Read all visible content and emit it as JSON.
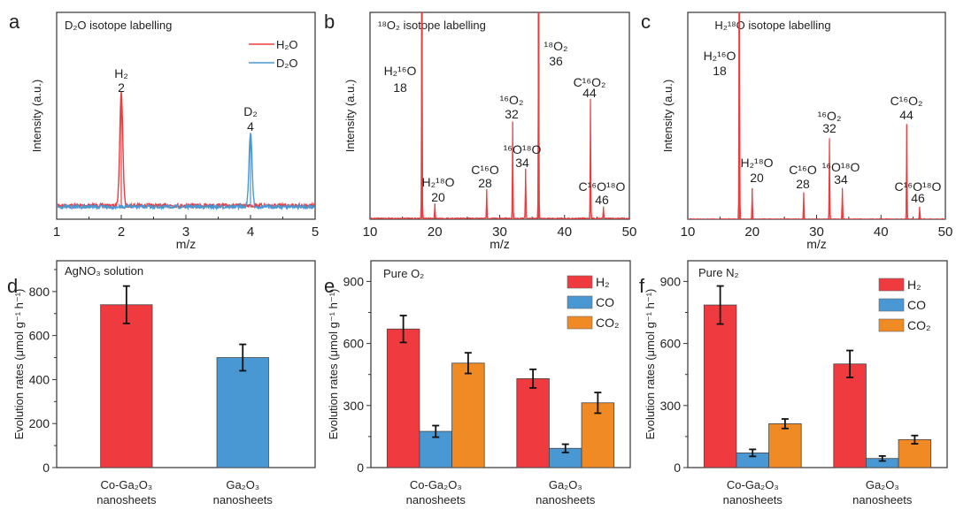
{
  "colors": {
    "red": "#ef3b3f",
    "blue": "#4a98d3",
    "orange": "#f08a24",
    "axis": "#333333"
  },
  "chart_data": [
    {
      "panel": "a",
      "type": "line",
      "title": "D₂O isotope labelling",
      "xlabel": "m/z",
      "ylabel": "Intensity (a.u.)",
      "xlim": [
        1,
        5
      ],
      "xticks": [
        1,
        2,
        3,
        4,
        5
      ],
      "ylim": [
        0,
        1
      ],
      "legend": "top-right",
      "series": [
        {
          "name": "H₂O",
          "color": "#ef3b3f",
          "peaks": [
            {
              "x": 2,
              "y": 0.58
            }
          ]
        },
        {
          "name": "D₂O",
          "color": "#4a98d3",
          "peaks": [
            {
              "x": 4,
              "y": 0.38
            }
          ]
        }
      ],
      "annotations": [
        {
          "name": "H₂",
          "mz": "2"
        },
        {
          "name": "D₂",
          "mz": "4"
        }
      ]
    },
    {
      "panel": "b",
      "type": "line",
      "title": "¹⁸O₂ isotope labelling",
      "xlabel": "m/z",
      "ylabel": "Intensity (a.u.)",
      "xlim": [
        10,
        50
      ],
      "xticks": [
        10,
        20,
        30,
        40,
        50
      ],
      "ylim": [
        0,
        1
      ],
      "series": [
        {
          "color": "#ef3b3f",
          "peaks": [
            {
              "x": 18,
              "y": 1.2
            },
            {
              "x": 20,
              "y": 0.07
            },
            {
              "x": 28,
              "y": 0.14
            },
            {
              "x": 32,
              "y": 0.47
            },
            {
              "x": 34,
              "y": 0.24
            },
            {
              "x": 36,
              "y": 1.2
            },
            {
              "x": 44,
              "y": 0.58
            },
            {
              "x": 46,
              "y": 0.055
            }
          ]
        }
      ],
      "annotations": [
        {
          "name": "H₂¹⁶O",
          "mz": "18"
        },
        {
          "name": "H₂¹⁸O",
          "mz": "20"
        },
        {
          "name": "C¹⁶O",
          "mz": "28"
        },
        {
          "name": "¹⁶O₂",
          "mz": "32"
        },
        {
          "name": "¹⁶O¹⁸O",
          "mz": "34"
        },
        {
          "name": "¹⁸O₂",
          "mz": "36"
        },
        {
          "name": "C¹⁶O₂",
          "mz": "44"
        },
        {
          "name": "C¹⁶O¹⁸O",
          "mz": "46"
        }
      ]
    },
    {
      "panel": "c",
      "type": "line",
      "title": "H₂¹⁸O isotope labelling",
      "xlabel": "m/z",
      "ylabel": "Intensity (a.u.)",
      "xlim": [
        10,
        50
      ],
      "xticks": [
        10,
        20,
        30,
        40,
        50
      ],
      "ylim": [
        0,
        1
      ],
      "series": [
        {
          "color": "#ef3b3f",
          "peaks": [
            {
              "x": 18,
              "y": 1.2
            },
            {
              "x": 20,
              "y": 0.15
            },
            {
              "x": 28,
              "y": 0.13
            },
            {
              "x": 32,
              "y": 0.39
            },
            {
              "x": 34,
              "y": 0.15
            },
            {
              "x": 44,
              "y": 0.46
            },
            {
              "x": 46,
              "y": 0.06
            }
          ]
        }
      ],
      "annotations": [
        {
          "name": "H₂¹⁶O",
          "mz": "18"
        },
        {
          "name": "H₂¹⁸O",
          "mz": "20"
        },
        {
          "name": "C¹⁶O",
          "mz": "28"
        },
        {
          "name": "¹⁶O₂",
          "mz": "32"
        },
        {
          "name": "¹⁶O¹⁸O",
          "mz": "34"
        },
        {
          "name": "C¹⁶O₂",
          "mz": "44"
        },
        {
          "name": "C¹⁶O¹⁸O",
          "mz": "46"
        }
      ]
    },
    {
      "panel": "d",
      "type": "bar",
      "title": "AgNO₃ solution",
      "ylabel": "Evolution rates (μmol g⁻¹ h⁻¹)",
      "ylim": [
        0,
        940
      ],
      "yticks": [
        0,
        200,
        400,
        600,
        800
      ],
      "categories": [
        [
          "Co-Ga₂O₃",
          "nanosheets"
        ],
        [
          "Ga₂O₃",
          "nanosheets"
        ]
      ],
      "values": [
        740,
        500
      ],
      "errors": [
        85,
        60
      ],
      "bar_colors": [
        "#ef3b3f",
        "#4a98d3"
      ]
    },
    {
      "panel": "e",
      "type": "bar",
      "title": "Pure O₂",
      "ylabel": "Evolution rates (μmol g⁻¹ h⁻¹)",
      "ylim": [
        0,
        1000
      ],
      "yticks": [
        0,
        300,
        600,
        900
      ],
      "legend": "top-right",
      "categories": [
        [
          "Co-Ga₂O₃",
          "nanosheets"
        ],
        [
          "Ga₂O₃",
          "nanosheets"
        ]
      ],
      "series": [
        {
          "name": "H₂",
          "color": "#ef3b3f",
          "values": [
            670,
            430
          ],
          "errors": [
            65,
            45
          ]
        },
        {
          "name": "CO",
          "color": "#4a98d3",
          "values": [
            175,
            93
          ],
          "errors": [
            28,
            20
          ]
        },
        {
          "name": "CO₂",
          "color": "#f08a24",
          "values": [
            505,
            313
          ],
          "errors": [
            50,
            50
          ]
        }
      ]
    },
    {
      "panel": "f",
      "type": "bar",
      "title": "Pure N₂",
      "ylabel": "Evolution rates (μmol g⁻¹ h⁻¹)",
      "ylim": [
        0,
        1000
      ],
      "yticks": [
        0,
        300,
        600,
        900
      ],
      "legend": "top-right",
      "categories": [
        [
          "Co-Ga₂O₃",
          "nanosheets"
        ],
        [
          "Ga₂O₃",
          "nanosheets"
        ]
      ],
      "series": [
        {
          "name": "H₂",
          "color": "#ef3b3f",
          "values": [
            786,
            501
          ],
          "errors": [
            92,
            65
          ]
        },
        {
          "name": "CO",
          "color": "#4a98d3",
          "values": [
            71,
            44
          ],
          "errors": [
            17,
            12
          ]
        },
        {
          "name": "CO₂",
          "color": "#f08a24",
          "values": [
            212,
            135
          ],
          "errors": [
            23,
            20
          ]
        }
      ]
    }
  ]
}
